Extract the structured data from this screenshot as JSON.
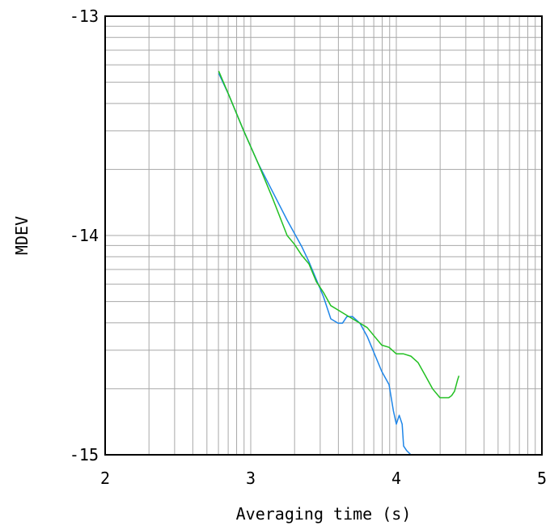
{
  "chart_data": {
    "type": "line",
    "xlabel": "Averaging time (s)",
    "ylabel": "MDEV",
    "x_scale": "log",
    "y_scale": "log",
    "xlim": [
      2,
      5
    ],
    "ylim": [
      -15,
      -13
    ],
    "x_ticks": [
      "2",
      "3",
      "4",
      "5"
    ],
    "y_ticks": [
      "-13",
      "-14",
      "-15"
    ],
    "grid": true,
    "colors": {
      "series_blue": "#1f86e8",
      "series_green": "#22c022",
      "grid": "#a8a8a8",
      "axes": "#000000"
    },
    "series": [
      {
        "color": "#1f86e8",
        "x": [
          2.78,
          2.85,
          2.95,
          3.05,
          3.15,
          3.25,
          3.35,
          3.4,
          3.45,
          3.5,
          3.55,
          3.6,
          3.63,
          3.66,
          3.7,
          3.75,
          3.8,
          3.85,
          3.9,
          3.95,
          3.98,
          4.0,
          4.02,
          4.04,
          4.05,
          4.07,
          4.1
        ],
        "y": [
          -13.26,
          -13.36,
          -13.52,
          -13.67,
          -13.8,
          -13.93,
          -14.05,
          -14.12,
          -14.2,
          -14.28,
          -14.38,
          -14.4,
          -14.4,
          -14.37,
          -14.37,
          -14.4,
          -14.46,
          -14.54,
          -14.62,
          -14.68,
          -14.8,
          -14.86,
          -14.82,
          -14.86,
          -14.96,
          -14.98,
          -15.0
        ]
      },
      {
        "color": "#22c022",
        "x": [
          2.78,
          2.85,
          2.95,
          3.05,
          3.15,
          3.25,
          3.3,
          3.35,
          3.4,
          3.45,
          3.5,
          3.55,
          3.6,
          3.65,
          3.7,
          3.75,
          3.8,
          3.85,
          3.9,
          3.95,
          4.0,
          4.05,
          4.1,
          4.15,
          4.2,
          4.25,
          4.3,
          4.33,
          4.36,
          4.38,
          4.4,
          4.42,
          4.43
        ],
        "y": [
          -13.25,
          -13.36,
          -13.52,
          -13.67,
          -13.83,
          -14.0,
          -14.04,
          -14.09,
          -14.13,
          -14.21,
          -14.26,
          -14.32,
          -14.34,
          -14.36,
          -14.38,
          -14.4,
          -14.42,
          -14.46,
          -14.5,
          -14.51,
          -14.54,
          -14.54,
          -14.55,
          -14.58,
          -14.64,
          -14.7,
          -14.74,
          -14.74,
          -14.74,
          -14.73,
          -14.71,
          -14.66,
          -14.64
        ]
      }
    ]
  }
}
